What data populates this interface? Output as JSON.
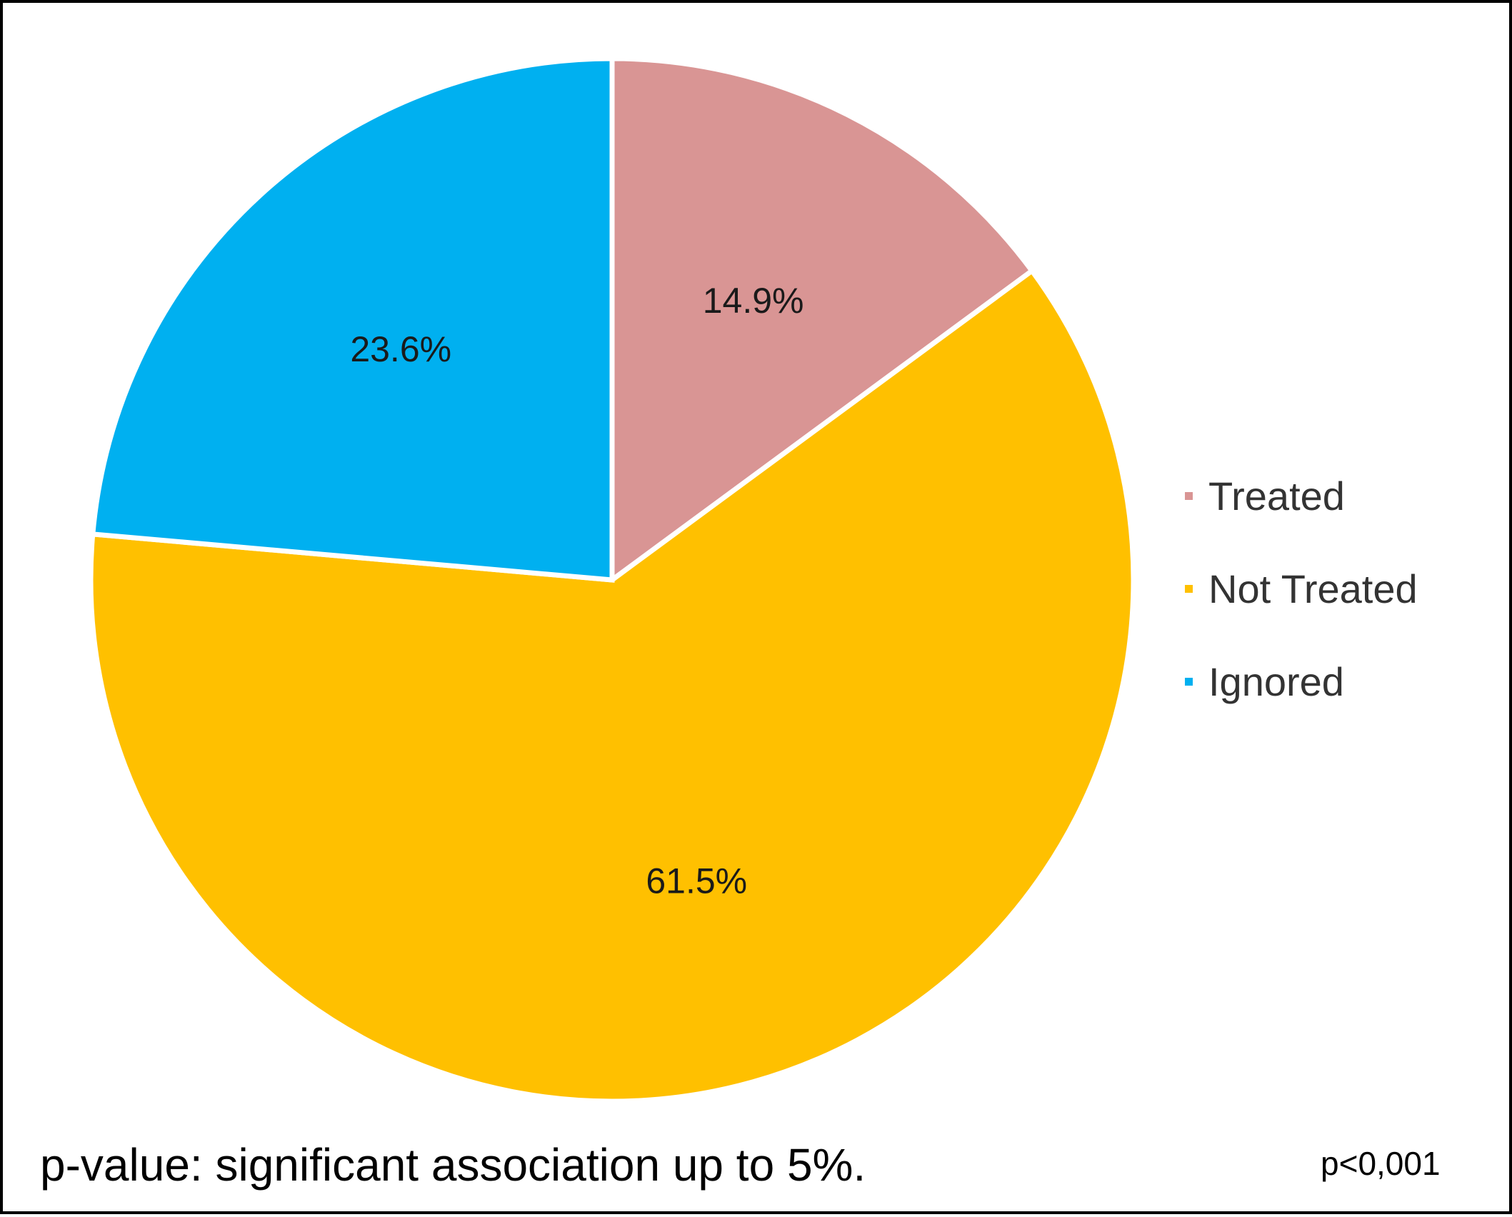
{
  "chart_data": {
    "type": "pie",
    "title": "",
    "slices": [
      {
        "label": "Treated",
        "value": 14.9,
        "display": "14.9%",
        "color": "#D99594"
      },
      {
        "label": "Not Treated",
        "value": 61.5,
        "display": "61.5%",
        "color": "#FFC000"
      },
      {
        "label": "Ignored",
        "value": 23.6,
        "display": "23.6%",
        "color": "#00B0F0"
      }
    ],
    "start_angle": "12 o'clock",
    "direction": "clockwise",
    "legend_position": "right"
  },
  "footnote": "p-value: significant association up to 5%.",
  "pvalue": "p<0,001"
}
